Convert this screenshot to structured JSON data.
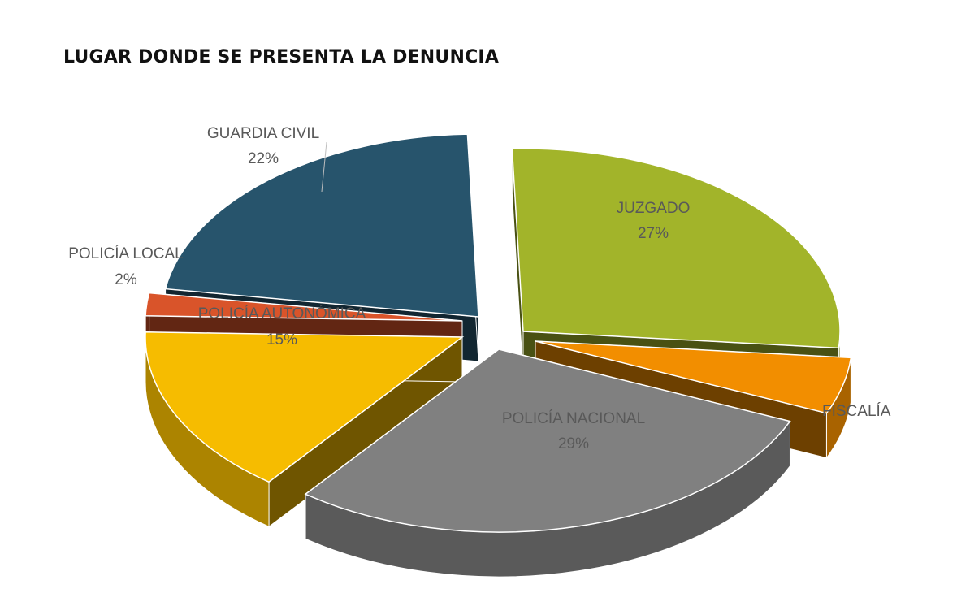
{
  "chart_data": {
    "type": "pie",
    "title": "LUGAR DONDE SE PRESENTA LA DENUNCIA",
    "slices": [
      {
        "label": "JUZGADO",
        "value": 27,
        "value_label": "27%",
        "color": "#a2b42a"
      },
      {
        "label": "FISCALÍA",
        "value": 5,
        "value_label": "",
        "color": "#f28e00"
      },
      {
        "label": "POLICÍA NACIONAL",
        "value": 29,
        "value_label": "29%",
        "color": "#808080"
      },
      {
        "label": "POLICÍA AUTONÓMICA",
        "value": 15,
        "value_label": "15%",
        "color": "#f6bc00"
      },
      {
        "label": "POLICÍA LOCAL",
        "value": 2,
        "value_label": "2%",
        "color": "#d9542a"
      },
      {
        "label": "GUARDIA CIVIL",
        "value": 22,
        "value_label": "22%",
        "color": "#27546c"
      }
    ],
    "legend": "none"
  }
}
